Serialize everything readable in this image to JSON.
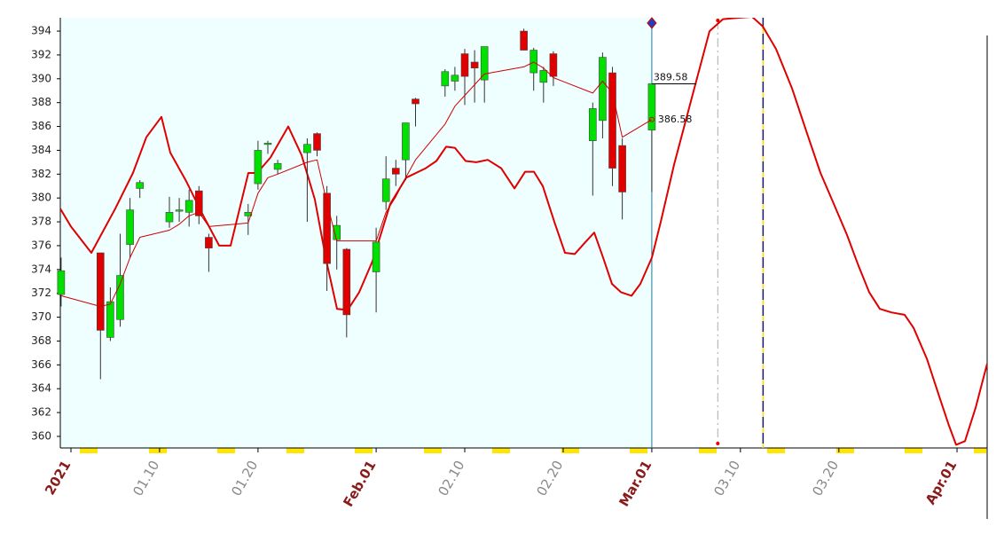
{
  "chart_data": {
    "type": "candlestick",
    "xlim": [
      -1.08,
      93.06
    ],
    "ylim": [
      359.03,
      395.12
    ],
    "yticks": [
      360,
      362,
      364,
      366,
      368,
      370,
      372,
      374,
      376,
      378,
      380,
      382,
      384,
      386,
      388,
      390,
      392,
      394
    ],
    "xticks": [
      {
        "value": 9,
        "label": "01.10"
      },
      {
        "value": 19,
        "label": "01.20"
      },
      {
        "value": 40,
        "label": "02.10"
      },
      {
        "value": 50,
        "label": "02.20"
      },
      {
        "value": 68,
        "label": "03.10"
      },
      {
        "value": 78,
        "label": "03.20"
      }
    ],
    "xmajorticks": [
      {
        "value": 0,
        "label": "2021"
      },
      {
        "value": 31,
        "label": "Feb.01"
      },
      {
        "value": 59,
        "label": "Mar.01"
      },
      {
        "value": 90,
        "label": "Apr.01"
      }
    ],
    "up_color": "#00e000",
    "down_color": "#e00000",
    "ma_color": "#d00000",
    "projection_color": "#e00000",
    "shade_color": "#effefe",
    "vlines": [
      59,
      65.7,
      70.3
    ],
    "candles": {
      "x": [
        -1,
        3,
        4,
        5,
        6,
        7,
        10,
        11,
        12,
        13,
        14,
        18,
        19,
        20,
        21,
        24,
        25,
        26,
        27,
        28,
        31,
        32,
        33,
        34,
        35,
        38,
        39,
        40,
        41,
        42,
        46,
        47,
        48,
        49,
        53,
        54,
        55,
        56,
        59
      ],
      "open": [
        371.9,
        375.4,
        368.3,
        369.8,
        376.1,
        380.8,
        378.0,
        378.9,
        378.8,
        380.6,
        376.7,
        378.5,
        381.2,
        384.5,
        382.4,
        383.8,
        385.4,
        380.4,
        376.5,
        375.7,
        373.8,
        379.7,
        382.5,
        383.2,
        388.3,
        389.4,
        389.8,
        392.1,
        391.4,
        389.9,
        394.0,
        390.5,
        389.7,
        392.1,
        384.8,
        386.5,
        390.5,
        384.4,
        385.7
      ],
      "high": [
        375.0,
        375.4,
        372.5,
        377.0,
        380.0,
        381.5,
        380.1,
        380.0,
        380.7,
        381.0,
        377.0,
        379.5,
        384.8,
        384.8,
        383.2,
        385.0,
        385.5,
        381.0,
        378.5,
        375.8,
        377.5,
        383.5,
        383.2,
        386.3,
        388.4,
        390.8,
        391.0,
        392.5,
        392.4,
        392.7,
        394.2,
        392.6,
        391.0,
        392.3,
        388.0,
        392.2,
        391.0,
        385.0,
        389.6
      ],
      "low": [
        370.9,
        364.8,
        368.0,
        369.2,
        375.0,
        380.0,
        377.5,
        378.0,
        377.6,
        377.8,
        373.8,
        376.9,
        380.7,
        383.7,
        382.0,
        378.0,
        383.5,
        372.2,
        374.0,
        368.3,
        370.4,
        379.0,
        381.0,
        381.5,
        386.0,
        388.5,
        389.0,
        387.8,
        388.0,
        388.0,
        392.4,
        389.0,
        388.0,
        389.4,
        380.2,
        385.0,
        381.0,
        378.2,
        380.5
      ],
      "close": [
        373.9,
        368.9,
        371.3,
        373.5,
        379.0,
        381.3,
        378.8,
        379.0,
        379.8,
        378.5,
        375.8,
        378.8,
        384.0,
        384.6,
        382.9,
        384.5,
        384.0,
        374.5,
        377.7,
        370.2,
        376.3,
        381.6,
        382.0,
        386.3,
        387.9,
        390.6,
        390.3,
        390.2,
        390.9,
        392.7,
        392.4,
        392.4,
        390.7,
        390.2,
        387.5,
        391.8,
        382.5,
        380.5,
        389.58
      ]
    },
    "ma": [
      371.8,
      370.9,
      371.1,
      372.8,
      375.0,
      376.7,
      377.3,
      377.8,
      378.5,
      378.8,
      377.6,
      377.9,
      380.4,
      381.7,
      382.0,
      383.0,
      383.2,
      379.6,
      376.4,
      376.4,
      376.4,
      378.8,
      380.1,
      381.7,
      383.2,
      386.2,
      387.7,
      388.6,
      389.5,
      390.4,
      391.0,
      391.4,
      390.9,
      390.1,
      388.8,
      389.8,
      388.8,
      385.1,
      386.58
    ],
    "projection": {
      "x": [
        -1.08,
        0,
        2.07,
        4.5,
        6.3,
        7.66,
        9.19,
        10.09,
        11.71,
        13.51,
        15.05,
        16.22,
        18.02,
        18.92,
        20.27,
        22.07,
        23.42,
        24.77,
        25.95,
        27.03,
        28.11,
        29.28,
        30.63,
        32.43,
        34.05,
        36.04,
        37.12,
        38.11,
        39.01,
        40.09,
        41.17,
        42.34,
        43.69,
        45.05,
        46.13,
        47.03,
        47.93,
        49.1,
        50.18,
        51.17,
        52.25,
        53.15,
        54.05,
        54.95,
        55.86,
        56.94,
        57.84,
        59.01,
        59.91,
        61.26,
        63.06,
        64.86,
        66.22,
        67.57,
        69.19,
        70.27,
        71.62,
        73.24,
        74.77,
        76.13,
        77.48,
        78.83,
        80.0,
        81.08,
        82.16,
        83.33,
        84.68,
        85.59,
        86.94,
        88.29,
        89.19,
        89.91,
        90.81,
        91.89,
        93.06
      ],
      "values": [
        379.1,
        377.6,
        375.4,
        379.1,
        382.1,
        385.1,
        386.8,
        383.8,
        381.4,
        378.4,
        376.0,
        376.0,
        382.1,
        382.1,
        383.4,
        386.0,
        383.6,
        379.9,
        374.7,
        370.7,
        370.6,
        372.1,
        374.7,
        379.5,
        381.7,
        382.5,
        383.1,
        384.3,
        384.2,
        383.1,
        383.0,
        383.2,
        382.5,
        380.8,
        382.2,
        382.2,
        381.0,
        378.0,
        375.4,
        375.3,
        376.3,
        377.1,
        375.0,
        372.8,
        372.1,
        371.8,
        372.8,
        375.0,
        378.0,
        382.8,
        388.4,
        394.0,
        395.0,
        395.1,
        395.2,
        394.4,
        392.5,
        389.2,
        385.4,
        382.1,
        379.5,
        376.9,
        374.3,
        372.1,
        370.7,
        370.4,
        370.2,
        369.1,
        366.5,
        363.1,
        360.9,
        359.3,
        359.6,
        362.4,
        366.1
      ]
    }
  }
}
